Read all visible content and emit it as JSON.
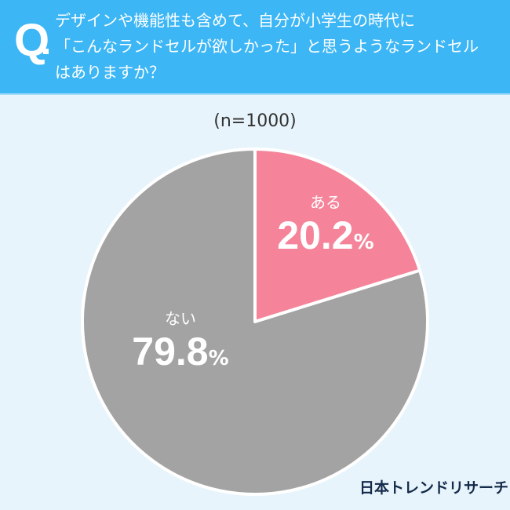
{
  "header": {
    "q_mark": "Q",
    "question": "デザインや機能性も含めて、自分が小学生の時代に\n「こんなランドセルが欲しかった」と思うようなランドセル\nはありますか？"
  },
  "chart_data": {
    "type": "pie",
    "note": "(n=1000)",
    "categories": [
      "ある",
      "ない"
    ],
    "values": [
      20.2,
      79.8
    ],
    "value_labels": [
      "20.2",
      "79.8"
    ],
    "unit": "%",
    "colors": [
      "#f5849a",
      "#a3a3a3"
    ],
    "start": "12 o'clock, clockwise"
  },
  "logo": "日本トレンドリサーチ"
}
